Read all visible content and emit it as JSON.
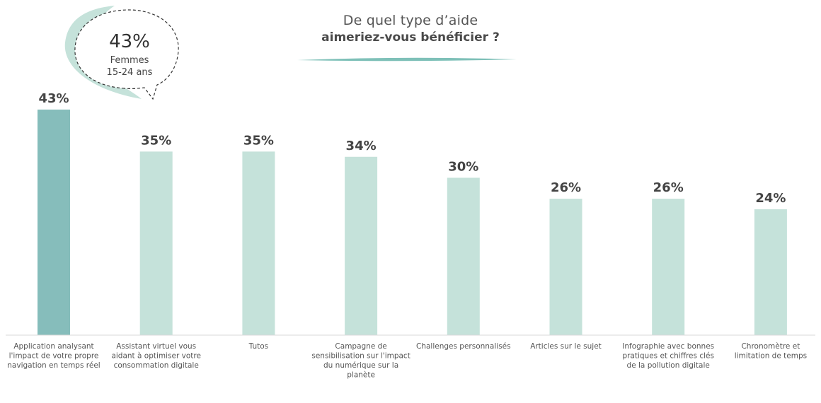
{
  "title": {
    "line1": "De quel type d’aide",
    "line2": "aimeriez-vous bénéficier ?"
  },
  "callout": {
    "value": "43%",
    "line1": "Femmes",
    "line2": "15-24 ans"
  },
  "colors": {
    "highlight_bar": "#86bdbb",
    "bar": "#c5e2da",
    "accent": "#7ec0b8",
    "callout_bg": "#c5e2da",
    "text": "#555555"
  },
  "chart_data": {
    "type": "bar",
    "categories": [
      [
        "Application analysant",
        "l'impact de votre propre",
        "navigation en temps réel"
      ],
      [
        "Assistant virtuel vous",
        "aidant à optimiser votre",
        "consommation digitale"
      ],
      [
        "Tutos"
      ],
      [
        "Campagne de",
        "sensibilisation sur l'impact",
        "du numérique sur la",
        "planète"
      ],
      [
        "Challenges personnalisés"
      ],
      [
        "Articles sur le sujet"
      ],
      [
        "Infographie avec bonnes",
        "pratiques et chiffres clés",
        "de la pollution digitale"
      ],
      [
        "Chronomètre et",
        "limitation de temps"
      ]
    ],
    "values": [
      43,
      35,
      35,
      34,
      30,
      26,
      26,
      24
    ],
    "value_labels": [
      "43%",
      "35%",
      "35%",
      "34%",
      "30%",
      "26%",
      "26%",
      "24%"
    ],
    "highlight_index": 0,
    "ylim": [
      0,
      43
    ],
    "grid": false,
    "legend": "none"
  }
}
